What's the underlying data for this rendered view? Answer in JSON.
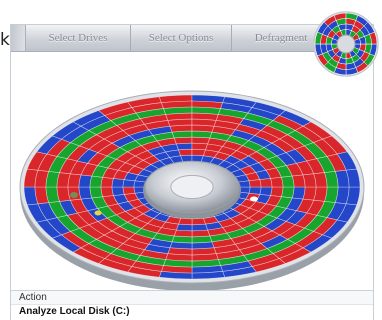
{
  "edge_text": "k",
  "toolbar": {
    "tabs": [
      {
        "label": "Select Drives"
      },
      {
        "label": "Select Options"
      },
      {
        "label": "Defragment"
      }
    ]
  },
  "disk_map": {
    "colors": {
      "fragmented": "#d9262b",
      "contiguous": "#18a52e",
      "free": "#2446c9",
      "unmovable": "#7c8a58",
      "system": "#e8d640",
      "spindle": "#cfd3da"
    }
  },
  "action_panel": {
    "header": "Action",
    "items": [
      "Analyze Local Disk (C:)"
    ]
  }
}
